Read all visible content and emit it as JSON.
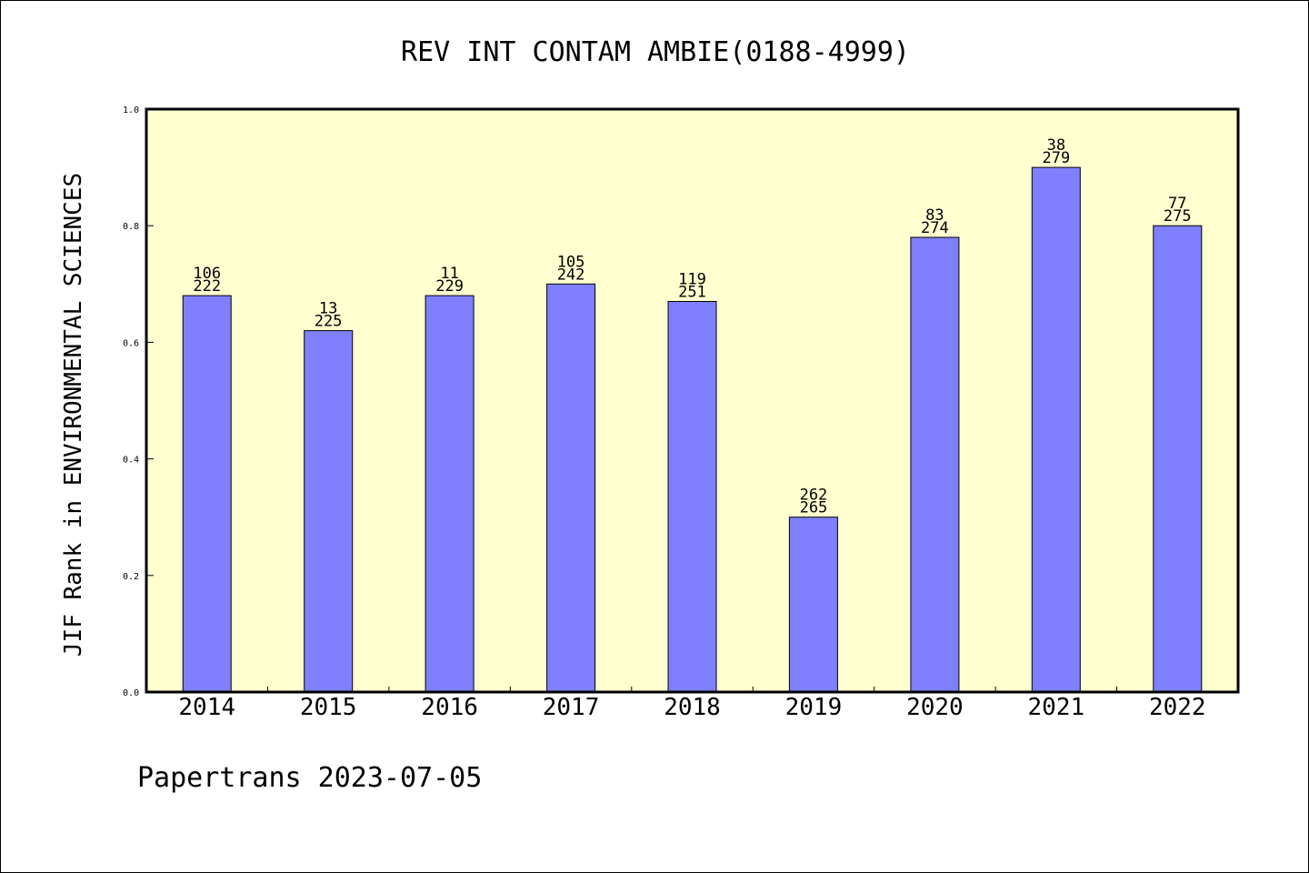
{
  "chart_data": {
    "type": "bar",
    "title": "REV INT CONTAM AMBIE(0188-4999)",
    "xlabel": "",
    "ylabel": "JIF Rank in ENVIRONMENTAL SCIENCES",
    "categories": [
      "2014",
      "2015",
      "2016",
      "2017",
      "2018",
      "2019",
      "2020",
      "2021",
      "2022"
    ],
    "values": [
      0.68,
      0.62,
      0.68,
      0.7,
      0.67,
      0.3,
      0.78,
      0.9,
      0.8
    ],
    "rank": [
      "106",
      "13",
      "11",
      "105",
      "119",
      "262",
      "83",
      "38",
      "77"
    ],
    "total": [
      "222",
      "225",
      "229",
      "242",
      "251",
      "265",
      "274",
      "279",
      "275"
    ],
    "ylim": [
      0,
      1.0
    ],
    "yticks": [
      "0.0",
      "0.2",
      "0.4",
      "0.6",
      "0.8",
      "1.0"
    ],
    "ytick_values": [
      0,
      0.2,
      0.4,
      0.6,
      0.8,
      1.0
    ],
    "grid": false,
    "legend": "none",
    "colors": {
      "bar_fill": "#8080ff",
      "bar_stroke": "#000000",
      "plot_background": "#ffffd0",
      "plot_border": "#000000"
    }
  },
  "footer": "Papertrans 2023-07-05"
}
